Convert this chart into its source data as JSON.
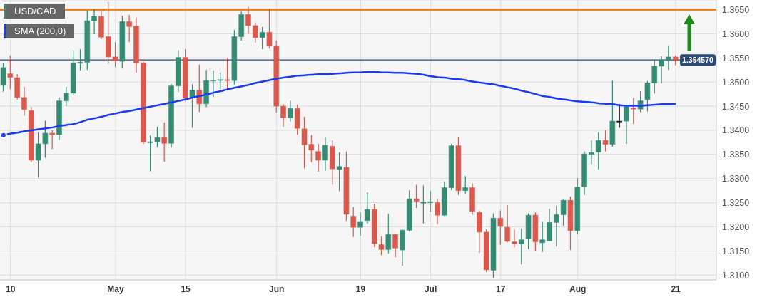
{
  "chart_data": {
    "type": "candlestick",
    "categories": [
      null,
      "10",
      null,
      null,
      null,
      null,
      null,
      null,
      null,
      null,
      null,
      null,
      null,
      null,
      null,
      null,
      "May",
      null,
      null,
      null,
      null,
      null,
      null,
      null,
      null,
      null,
      "15",
      null,
      null,
      null,
      null,
      null,
      null,
      null,
      null,
      null,
      null,
      null,
      null,
      "Jun",
      null,
      null,
      null,
      null,
      null,
      null,
      null,
      null,
      null,
      null,
      null,
      "19",
      null,
      null,
      null,
      null,
      null,
      null,
      null,
      null,
      null,
      "Jul",
      null,
      null,
      null,
      null,
      null,
      null,
      null,
      null,
      null,
      "17",
      null,
      null,
      null,
      null,
      null,
      null,
      null,
      null,
      null,
      null,
      "Aug",
      null,
      null,
      null,
      null,
      null,
      null,
      null,
      null,
      null,
      null,
      null,
      null,
      null,
      "21"
    ],
    "series": [
      {
        "name": "USD/CAD",
        "type": "candlestick",
        "color": "#358c74",
        "ohlc": [
          [
            1.3493,
            1.354,
            1.348,
            1.353
          ],
          [
            1.3517,
            1.3555,
            1.3485,
            1.351
          ],
          [
            1.3509,
            1.3516,
            1.3464,
            1.3468
          ],
          [
            1.3468,
            1.349,
            1.343,
            1.3443
          ],
          [
            1.3441,
            1.3448,
            1.3334,
            1.3338
          ],
          [
            1.3338,
            1.3396,
            1.3302,
            1.3372
          ],
          [
            1.3372,
            1.342,
            1.3343,
            1.3394
          ],
          [
            1.3394,
            1.34,
            1.3361,
            1.3391
          ],
          [
            1.3391,
            1.3468,
            1.338,
            1.3461
          ],
          [
            1.3461,
            1.349,
            1.345,
            1.3477
          ],
          [
            1.3477,
            1.3565,
            1.3472,
            1.354
          ],
          [
            1.354,
            1.3568,
            1.3524,
            1.3541
          ],
          [
            1.3541,
            1.3648,
            1.3525,
            1.3627
          ],
          [
            1.3627,
            1.3652,
            1.3599,
            1.3636
          ],
          [
            1.3636,
            1.3646,
            1.3589,
            1.3593
          ],
          [
            1.3594,
            1.3666,
            1.3538,
            1.3552
          ],
          [
            1.3552,
            1.3583,
            1.3531,
            1.3544
          ],
          [
            1.3543,
            1.3637,
            1.3528,
            1.3625
          ],
          [
            1.3625,
            1.3639,
            1.3583,
            1.3615
          ],
          [
            1.3616,
            1.3634,
            1.3519,
            1.354
          ],
          [
            1.354,
            1.3542,
            1.3371,
            1.3375
          ],
          [
            1.3375,
            1.3389,
            1.3315,
            1.3376
          ],
          [
            1.3376,
            1.3407,
            1.3365,
            1.3385
          ],
          [
            1.3386,
            1.3416,
            1.3335,
            1.3373
          ],
          [
            1.3373,
            1.3496,
            1.3364,
            1.3492
          ],
          [
            1.3492,
            1.3566,
            1.348,
            1.3551
          ],
          [
            1.3551,
            1.3568,
            1.346,
            1.3467
          ],
          [
            1.3467,
            1.3495,
            1.3405,
            1.3483
          ],
          [
            1.3483,
            1.3536,
            1.3438,
            1.3455
          ],
          [
            1.3455,
            1.3525,
            1.3448,
            1.3503
          ],
          [
            1.3503,
            1.3524,
            1.3469,
            1.3504
          ],
          [
            1.3504,
            1.352,
            1.3485,
            1.3505
          ],
          [
            1.3505,
            1.355,
            1.3485,
            1.3503
          ],
          [
            1.3503,
            1.3608,
            1.3495,
            1.3594
          ],
          [
            1.3594,
            1.3646,
            1.3586,
            1.364
          ],
          [
            1.364,
            1.3656,
            1.36,
            1.3617
          ],
          [
            1.3617,
            1.3623,
            1.3582,
            1.3592
          ],
          [
            1.3592,
            1.3614,
            1.3568,
            1.3603
          ],
          [
            1.3603,
            1.3652,
            1.3569,
            1.3575
          ],
          [
            1.3575,
            1.3586,
            1.3437,
            1.345
          ],
          [
            1.345,
            1.3454,
            1.3407,
            1.3426
          ],
          [
            1.3426,
            1.3461,
            1.3418,
            1.3445
          ],
          [
            1.3445,
            1.3453,
            1.3391,
            1.3404
          ],
          [
            1.3403,
            1.3428,
            1.3321,
            1.337
          ],
          [
            1.3371,
            1.339,
            1.3334,
            1.3359
          ],
          [
            1.3356,
            1.3372,
            1.3314,
            1.3338
          ],
          [
            1.3338,
            1.3386,
            1.3316,
            1.3369
          ],
          [
            1.3367,
            1.3379,
            1.3287,
            1.332
          ],
          [
            1.3319,
            1.3354,
            1.3274,
            1.3325
          ],
          [
            1.3323,
            1.3356,
            1.3212,
            1.3226
          ],
          [
            1.3222,
            1.3241,
            1.3179,
            1.3199
          ],
          [
            1.3199,
            1.323,
            1.3181,
            1.3211
          ],
          [
            1.3213,
            1.3271,
            1.3207,
            1.3236
          ],
          [
            1.3236,
            1.3248,
            1.3158,
            1.3165
          ],
          [
            1.3163,
            1.318,
            1.3141,
            1.3153
          ],
          [
            1.3153,
            1.3227,
            1.3145,
            1.3184
          ],
          [
            1.3184,
            1.3185,
            1.3137,
            1.3156
          ],
          [
            1.3152,
            1.3194,
            1.3119,
            1.3193
          ],
          [
            1.3193,
            1.3276,
            1.319,
            1.3258
          ],
          [
            1.3258,
            1.3287,
            1.3239,
            1.3253
          ],
          [
            1.3249,
            1.3286,
            1.3207,
            1.3251
          ],
          [
            1.325,
            1.3274,
            1.3231,
            1.3252
          ],
          [
            1.325,
            1.3258,
            1.3205,
            1.3224
          ],
          [
            1.3224,
            1.3294,
            1.3222,
            1.3281
          ],
          [
            1.3281,
            1.3372,
            1.3276,
            1.3368
          ],
          [
            1.3368,
            1.3387,
            1.3266,
            1.3275
          ],
          [
            1.3275,
            1.3305,
            1.3269,
            1.3281
          ],
          [
            1.3281,
            1.329,
            1.3225,
            1.3232
          ],
          [
            1.323,
            1.3234,
            1.3146,
            1.3189
          ],
          [
            1.3189,
            1.3195,
            1.3106,
            1.3111
          ],
          [
            1.311,
            1.3228,
            1.3094,
            1.3218
          ],
          [
            1.3218,
            1.3234,
            1.3163,
            1.3201
          ],
          [
            1.3199,
            1.3245,
            1.3168,
            1.317
          ],
          [
            1.3169,
            1.3194,
            1.3157,
            1.3165
          ],
          [
            1.3165,
            1.3196,
            1.3122,
            1.3173
          ],
          [
            1.3175,
            1.3228,
            1.3154,
            1.3224
          ],
          [
            1.3224,
            1.323,
            1.315,
            1.3169
          ],
          [
            1.3167,
            1.3211,
            1.3148,
            1.3173
          ],
          [
            1.3171,
            1.3238,
            1.317,
            1.3209
          ],
          [
            1.3209,
            1.3244,
            1.3159,
            1.3225
          ],
          [
            1.3225,
            1.3257,
            1.3202,
            1.3255
          ],
          [
            1.3255,
            1.3263,
            1.3152,
            1.3192
          ],
          [
            1.3192,
            1.3301,
            1.3185,
            1.3282
          ],
          [
            1.3283,
            1.3356,
            1.3266,
            1.3351
          ],
          [
            1.335,
            1.3379,
            1.333,
            1.3354
          ],
          [
            1.3355,
            1.3396,
            1.3319,
            1.3379
          ],
          [
            1.3379,
            1.34,
            1.3356,
            1.3371
          ],
          [
            1.3371,
            1.3503,
            1.3366,
            1.3419
          ],
          [
            1.3419,
            1.3454,
            1.3405,
            1.3419
          ],
          [
            1.3419,
            1.3451,
            1.3372,
            1.3449
          ],
          [
            1.3446,
            1.3467,
            1.3413,
            1.3444
          ],
          [
            1.3444,
            1.3481,
            1.3438,
            1.3461
          ],
          [
            1.3464,
            1.3502,
            1.3439,
            1.3498
          ],
          [
            1.3498,
            1.3546,
            1.3476,
            1.3533
          ],
          [
            1.3533,
            1.3553,
            1.3497,
            1.3546
          ],
          [
            1.3546,
            1.3576,
            1.3525,
            1.3552
          ],
          [
            1.3552,
            1.3555,
            1.3535,
            1.35457
          ]
        ],
        "colors": [
          "#358c74",
          "#d9594c",
          "#d9594c",
          "#d9594c",
          "#d9594c",
          "#358c74",
          "#358c74",
          "#d9594c",
          "#358c74",
          "#358c74",
          "#358c74",
          "#358c74",
          "#358c74",
          "#358c74",
          "#d9594c",
          "#d9594c",
          "#d9594c",
          "#358c74",
          "#d9594c",
          "#d9594c",
          "#d9594c",
          "#358c74",
          "#358c74",
          "#d9594c",
          "#358c74",
          "#358c74",
          "#d9594c",
          "#358c74",
          "#d9594c",
          "#358c74",
          "#358c74",
          "#358c74",
          "#d9594c",
          "#358c74",
          "#358c74",
          "#d9594c",
          "#d9594c",
          "#358c74",
          "#d9594c",
          "#d9594c",
          "#d9594c",
          "#358c74",
          "#d9594c",
          "#d9594c",
          "#d9594c",
          "#d9594c",
          "#358c74",
          "#d9594c",
          "#358c74",
          "#d9594c",
          "#d9594c",
          "#358c74",
          "#358c74",
          "#d9594c",
          "#d9594c",
          "#358c74",
          "#d9594c",
          "#358c74",
          "#358c74",
          "#d9594c",
          "#358c74",
          "#358c74",
          "#d9594c",
          "#358c74",
          "#358c74",
          "#d9594c",
          "#358c74",
          "#d9594c",
          "#d9594c",
          "#d9594c",
          "#358c74",
          "#d9594c",
          "#d9594c",
          "#d9594c",
          "#358c74",
          "#358c74",
          "#d9594c",
          "#358c74",
          "#358c74",
          "#358c74",
          "#358c74",
          "#d9594c",
          "#358c74",
          "#358c74",
          "#358c74",
          "#358c74",
          "#d9594c",
          "#358c74",
          "#000000",
          "#358c74",
          "#d9594c",
          "#358c74",
          "#358c74",
          "#358c74",
          "#358c74",
          "#358c74",
          "#d9594c"
        ]
      },
      {
        "name": "SMA (200,0)",
        "type": "line",
        "color": "#1a3cf0",
        "values": [
          1.339,
          1.3393,
          1.3395,
          1.3398,
          1.34,
          1.3402,
          1.3404,
          1.3406,
          1.3409,
          1.3411,
          1.3413,
          1.3417,
          1.3422,
          1.3425,
          1.3428,
          1.3432,
          1.3435,
          1.3438,
          1.344,
          1.3443,
          1.3446,
          1.3449,
          1.3452,
          1.3455,
          1.3458,
          1.3461,
          1.3464,
          1.3468,
          1.3471,
          1.3474,
          1.3478,
          1.3481,
          1.3485,
          1.3488,
          1.3491,
          1.3494,
          1.3498,
          1.3501,
          1.3504,
          1.3507,
          1.3509,
          1.3511,
          1.3513,
          1.3514,
          1.3515,
          1.3516,
          1.3516,
          1.3517,
          1.3518,
          1.3519,
          1.352,
          1.352,
          1.3521,
          1.3521,
          1.352,
          1.352,
          1.3519,
          1.3519,
          1.3518,
          1.3517,
          1.3515,
          1.3512,
          1.351,
          1.3509,
          1.3507,
          1.3506,
          1.3504,
          1.3501,
          1.3499,
          1.3497,
          1.3495,
          1.3492,
          1.3489,
          1.3486,
          1.3482,
          1.3479,
          1.3475,
          1.3471,
          1.3469,
          1.3466,
          1.3464,
          1.3462,
          1.346,
          1.3459,
          1.3458,
          1.3456,
          1.3455,
          1.3454,
          1.3452,
          1.3451,
          1.3451,
          1.3451,
          1.3452,
          1.3453,
          1.3454,
          1.3454,
          1.3455
        ]
      }
    ],
    "ylim": [
      1.309,
      1.367
    ],
    "yticks": [
      {
        "value": 1.31,
        "label": "1.3100"
      },
      {
        "value": 1.315,
        "label": "1.3150"
      },
      {
        "value": 1.32,
        "label": "1.3200"
      },
      {
        "value": 1.325,
        "label": "1.3250"
      },
      {
        "value": 1.33,
        "label": "1.3300"
      },
      {
        "value": 1.335,
        "label": "1.3350"
      },
      {
        "value": 1.34,
        "label": "1.3400"
      },
      {
        "value": 1.345,
        "label": "1.3450"
      },
      {
        "value": 1.35,
        "label": "1.3500"
      },
      {
        "value": 1.355,
        "label": "1.3550"
      },
      {
        "value": 1.36,
        "label": "1.3600"
      },
      {
        "value": 1.365,
        "label": "1.3650"
      }
    ],
    "ref_lines": [
      {
        "axis": "y",
        "value": 1.365,
        "color": "#f5821f"
      },
      {
        "axis": "y",
        "value": 1.35457,
        "label": "1.354570",
        "color": "#2c4a73"
      }
    ],
    "grid": true,
    "legend": "top left"
  }
}
